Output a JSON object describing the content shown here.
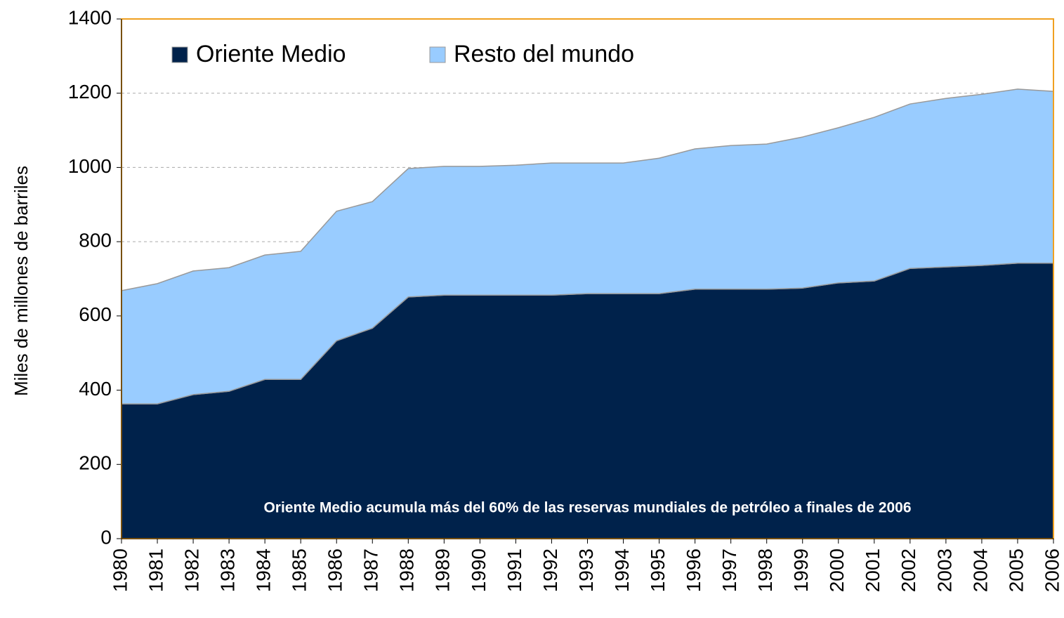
{
  "chart_data": {
    "type": "stacked_area",
    "y_label": "Miles de millones de barriles",
    "annotation": "Oriente Medio acumula más del 60% de las reservas mundiales de petróleo a finales de 2006",
    "categories": [
      "1980",
      "1981",
      "1982",
      "1983",
      "1984",
      "1985",
      "1986",
      "1987",
      "1988",
      "1989",
      "1990",
      "1991",
      "1992",
      "1993",
      "1994",
      "1995",
      "1996",
      "1997",
      "1998",
      "1999",
      "2000",
      "2001",
      "2002",
      "2003",
      "2004",
      "2005",
      "2006"
    ],
    "series": [
      {
        "name": "Oriente Medio",
        "color": "#00224b",
        "values": [
          363,
          363,
          388,
          397,
          429,
          429,
          533,
          567,
          651,
          656,
          656,
          656,
          656,
          660,
          660,
          660,
          672,
          672,
          672,
          675,
          689,
          694,
          728,
          732,
          736,
          742,
          742
        ]
      },
      {
        "name": "Resto del mundo",
        "color": "#99ccff",
        "values": [
          305,
          324,
          333,
          333,
          335,
          345,
          349,
          341,
          346,
          347,
          347,
          350,
          356,
          352,
          352,
          365,
          378,
          387,
          391,
          407,
          418,
          441,
          443,
          454,
          461,
          469,
          463
        ]
      }
    ],
    "ylim": [
      0,
      1400
    ],
    "yticks": [
      0,
      200,
      400,
      600,
      800,
      1000,
      1200,
      1400
    ],
    "grid": true,
    "legend": "top-left"
  }
}
